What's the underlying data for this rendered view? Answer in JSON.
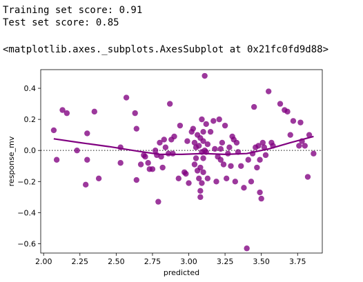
{
  "output": {
    "line1": "Training set score: 0.91",
    "line2": "Test set score: 0.85",
    "line3": "<matplotlib.axes._subplots.AxesSubplot at 0x21fc0fd9d88>"
  },
  "chart_data": {
    "type": "scatter",
    "xlabel": "predicted",
    "ylabel": "response_mv",
    "xlim": [
      1.98,
      3.92
    ],
    "ylim": [
      -0.66,
      0.52
    ],
    "xticks": [
      2.0,
      2.25,
      2.5,
      2.75,
      3.0,
      3.25,
      3.5,
      3.75
    ],
    "xtick_labels": [
      "2.00",
      "2.25",
      "2.50",
      "2.75",
      "3.00",
      "3.25",
      "3.50",
      "3.75"
    ],
    "yticks": [
      -0.6,
      -0.4,
      -0.2,
      0.0,
      0.2,
      0.4
    ],
    "ytick_labels": [
      "−0.6",
      "−0.4",
      "−0.2",
      "0.0",
      "0.2",
      "0.4"
    ],
    "point_color": "#800080",
    "reference_line": {
      "y": 0,
      "style": "dotted",
      "color": "#555555"
    },
    "points": [
      [
        2.07,
        0.13
      ],
      [
        2.09,
        -0.06
      ],
      [
        2.13,
        0.26
      ],
      [
        2.16,
        0.24
      ],
      [
        2.23,
        0.0
      ],
      [
        2.29,
        -0.22
      ],
      [
        2.3,
        0.11
      ],
      [
        2.3,
        -0.06
      ],
      [
        2.35,
        0.25
      ],
      [
        2.38,
        -0.18
      ],
      [
        2.53,
        0.02
      ],
      [
        2.53,
        -0.08
      ],
      [
        2.57,
        0.34
      ],
      [
        2.63,
        0.24
      ],
      [
        2.64,
        0.14
      ],
      [
        2.64,
        -0.19
      ],
      [
        2.67,
        -0.09
      ],
      [
        2.69,
        -0.03
      ],
      [
        2.7,
        -0.04
      ],
      [
        2.72,
        -0.08
      ],
      [
        2.73,
        -0.12
      ],
      [
        2.75,
        -0.12
      ],
      [
        2.77,
        0.0
      ],
      [
        2.78,
        -0.03
      ],
      [
        2.79,
        -0.33
      ],
      [
        2.8,
        0.05
      ],
      [
        2.81,
        -0.04
      ],
      [
        2.82,
        -0.11
      ],
      [
        2.83,
        0.07
      ],
      [
        2.84,
        0.02
      ],
      [
        2.86,
        -0.02
      ],
      [
        2.87,
        0.3
      ],
      [
        2.88,
        0.07
      ],
      [
        2.89,
        -0.02
      ],
      [
        2.9,
        0.09
      ],
      [
        2.93,
        -0.18
      ],
      [
        2.94,
        0.16
      ],
      [
        2.97,
        -0.14
      ],
      [
        2.98,
        -0.15
      ],
      [
        2.99,
        0.06
      ],
      [
        3.0,
        -0.21
      ],
      [
        3.02,
        0.12
      ],
      [
        3.03,
        0.14
      ],
      [
        3.04,
        0.05
      ],
      [
        3.04,
        -0.09
      ],
      [
        3.05,
        0.02
      ],
      [
        3.05,
        -0.05
      ],
      [
        3.06,
        0.1
      ],
      [
        3.06,
        -0.13
      ],
      [
        3.07,
        0.03
      ],
      [
        3.07,
        -0.18
      ],
      [
        3.08,
        0.08
      ],
      [
        3.08,
        -0.11
      ],
      [
        3.08,
        -0.26
      ],
      [
        3.08,
        -0.3
      ],
      [
        3.09,
        0.2
      ],
      [
        3.09,
        -0.01
      ],
      [
        3.09,
        -0.21
      ],
      [
        3.1,
        0.12
      ],
      [
        3.1,
        0.06
      ],
      [
        3.1,
        -0.05
      ],
      [
        3.1,
        -0.14
      ],
      [
        3.11,
        0.48
      ],
      [
        3.11,
        0.0
      ],
      [
        3.12,
        0.17
      ],
      [
        3.12,
        -0.01
      ],
      [
        3.13,
        0.04
      ],
      [
        3.13,
        -0.18
      ],
      [
        3.15,
        0.12
      ],
      [
        3.17,
        0.19
      ],
      [
        3.18,
        0.01
      ],
      [
        3.19,
        -0.2
      ],
      [
        3.2,
        -0.04
      ],
      [
        3.21,
        0.2
      ],
      [
        3.22,
        0.01
      ],
      [
        3.22,
        -0.06
      ],
      [
        3.23,
        0.05
      ],
      [
        3.24,
        -0.09
      ],
      [
        3.25,
        0.16
      ],
      [
        3.26,
        -0.18
      ],
      [
        3.27,
        -0.02
      ],
      [
        3.28,
        0.02
      ],
      [
        3.29,
        -0.1
      ],
      [
        3.3,
        0.09
      ],
      [
        3.31,
        0.07
      ],
      [
        3.32,
        -0.2
      ],
      [
        3.33,
        0.05
      ],
      [
        3.34,
        -0.01
      ],
      [
        3.36,
        -0.1
      ],
      [
        3.38,
        -0.24
      ],
      [
        3.4,
        -0.63
      ],
      [
        3.41,
        -0.06
      ],
      [
        3.43,
        -0.2
      ],
      [
        3.44,
        -0.02
      ],
      [
        3.45,
        0.28
      ],
      [
        3.46,
        0.02
      ],
      [
        3.47,
        -0.11
      ],
      [
        3.48,
        0.03
      ],
      [
        3.49,
        -0.06
      ],
      [
        3.49,
        -0.27
      ],
      [
        3.5,
        -0.31
      ],
      [
        3.51,
        0.05
      ],
      [
        3.52,
        0.02
      ],
      [
        3.53,
        -0.03
      ],
      [
        3.55,
        0.38
      ],
      [
        3.57,
        0.05
      ],
      [
        3.58,
        0.03
      ],
      [
        3.63,
        0.3
      ],
      [
        3.66,
        0.26
      ],
      [
        3.68,
        0.25
      ],
      [
        3.7,
        0.1
      ],
      [
        3.72,
        0.19
      ],
      [
        3.76,
        0.03
      ],
      [
        3.77,
        0.18
      ],
      [
        3.78,
        0.06
      ],
      [
        3.8,
        0.03
      ],
      [
        3.82,
        -0.17
      ],
      [
        3.83,
        0.1
      ],
      [
        3.86,
        -0.02
      ]
    ],
    "smoothing_curve": [
      [
        2.07,
        0.075
      ],
      [
        2.25,
        0.05
      ],
      [
        2.45,
        0.025
      ],
      [
        2.65,
        -0.005
      ],
      [
        2.8,
        -0.025
      ],
      [
        2.95,
        -0.025
      ],
      [
        3.1,
        -0.02
      ],
      [
        3.25,
        -0.025
      ],
      [
        3.4,
        -0.02
      ],
      [
        3.55,
        0.01
      ],
      [
        3.7,
        0.05
      ],
      [
        3.86,
        0.09
      ]
    ]
  }
}
